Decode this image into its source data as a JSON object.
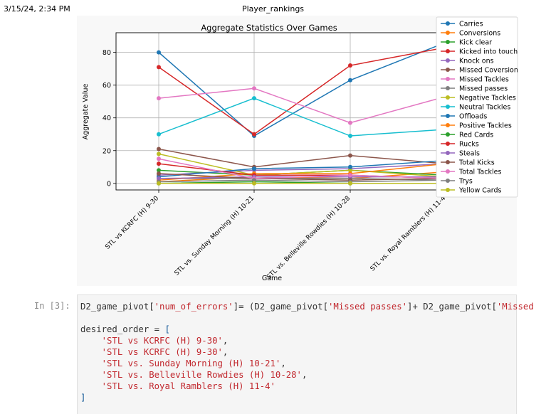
{
  "header": {
    "datetime": "3/15/24, 2:34 PM",
    "doc_title": "Player_rankings"
  },
  "chart_data": {
    "type": "line",
    "title": "Aggregate Statistics Over Games",
    "xlabel": "Game",
    "ylabel": "Aggregate Value",
    "categories": [
      "STL vs KCRFC (H) 9-30",
      "STL vs. Sunday Morning (H) 10-21",
      "STL vs. Belleville Rowdies (H) 10-28",
      "STL vs. Royal Ramblers (H) 11-4"
    ],
    "yticks": [
      "0",
      "20",
      "40",
      "60",
      "80"
    ],
    "ylim": [
      -4,
      92
    ],
    "legend_position": "top-right (outside)",
    "series": [
      {
        "name": "Carries",
        "color": "#1f77b4",
        "values": [
          80,
          29,
          63,
          86
        ]
      },
      {
        "name": "Conversions",
        "color": "#ff7f0e",
        "values": [
          1,
          4,
          3,
          7
        ]
      },
      {
        "name": "Kick clear",
        "color": "#2ca02c",
        "values": [
          8,
          5,
          8,
          5
        ]
      },
      {
        "name": "Kicked into touch",
        "color": "#d62728",
        "values": [
          71,
          30,
          72,
          83
        ]
      },
      {
        "name": "Knock ons",
        "color": "#9467bd",
        "values": [
          5,
          8,
          9,
          12
        ]
      },
      {
        "name": "Missed Coversion",
        "color": "#8c564b",
        "values": [
          21,
          10,
          17,
          12
        ]
      },
      {
        "name": "Missed Tackles",
        "color": "#e377c2",
        "values": [
          52,
          58,
          37,
          53
        ]
      },
      {
        "name": "Missed passes",
        "color": "#7f7f7f",
        "values": [
          3,
          3,
          3,
          2
        ]
      },
      {
        "name": "Negative Tackles",
        "color": "#bcbd22",
        "values": [
          18,
          5,
          8,
          4
        ]
      },
      {
        "name": "Neutral Tackles",
        "color": "#17becf",
        "values": [
          30,
          52,
          29,
          33
        ]
      },
      {
        "name": "Offloads",
        "color": "#1f77b4",
        "values": [
          4,
          9,
          10,
          14
        ]
      },
      {
        "name": "Positive Tackles",
        "color": "#ff7f0e",
        "values": [
          2,
          6,
          6,
          12
        ]
      },
      {
        "name": "Red Cards",
        "color": "#2ca02c",
        "values": [
          0,
          1,
          0,
          0
        ]
      },
      {
        "name": "Rucks",
        "color": "#d62728",
        "values": [
          12,
          5,
          5,
          3
        ]
      },
      {
        "name": "Steals",
        "color": "#9467bd",
        "values": [
          3,
          4,
          4,
          4
        ]
      },
      {
        "name": "Total Kicks",
        "color": "#8c564b",
        "values": [
          6,
          3,
          2,
          3
        ]
      },
      {
        "name": "Total Tackles",
        "color": "#e377c2",
        "values": [
          15,
          3,
          5,
          3
        ]
      },
      {
        "name": "Trys",
        "color": "#7f7f7f",
        "values": [
          1,
          2,
          1,
          2
        ]
      },
      {
        "name": "Yellow Cards",
        "color": "#bcbd22",
        "values": [
          0,
          0,
          0,
          0
        ]
      }
    ]
  },
  "cell": {
    "prompt": "In [3]:",
    "line1": {
      "var": "D2_game_pivot",
      "key": "'num_of_errors'",
      "mid": "]= (D2_game_pivot[",
      "key2": "'Missed passes'",
      "mid2": "]+ D2_game_pivot[",
      "key3": "'Missed"
    },
    "order_decl": "desired_order = ",
    "open_bracket": "[",
    "order_items": [
      "'STL vs KCRFC (H) 9-30'",
      "'STL vs KCRFC (H) 9-30'",
      "'STL vs. Sunday Morning (H) 10-21'",
      "'STL vs. Belleville Rowdies (H) 10-28'",
      "'STL vs. Royal Ramblers (H) 11-4'"
    ],
    "close_bracket": "]"
  }
}
